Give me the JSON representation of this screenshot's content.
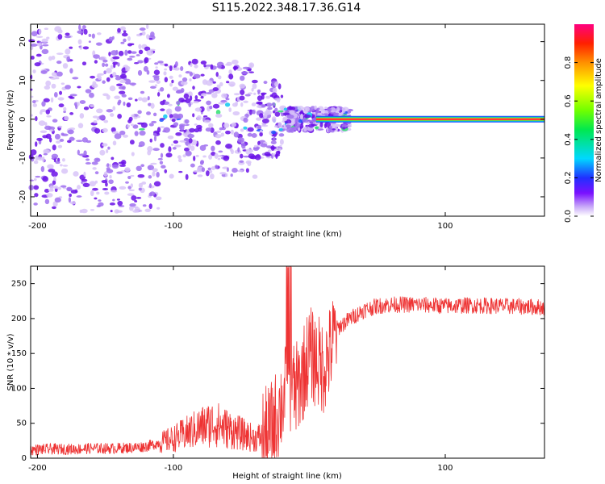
{
  "figure_title": "S115.2022.348.17.36.G14",
  "colors": {
    "snr_line": "#ee3333",
    "axis": "#000000",
    "scatter_light": "#d8c4f8",
    "scatter_mid": "#a070f0",
    "scatter_dark": "#6a10e8"
  },
  "chart_data": [
    {
      "type": "heatmap",
      "title": "",
      "xlabel": "Height of straight line (km)",
      "ylabel": "Frequency (Hz)",
      "xlim": [
        -205,
        173
      ],
      "ylim": [
        -25,
        24.5
      ],
      "xticks": [
        -200,
        -100,
        100
      ],
      "yticks": [
        -20,
        -10,
        0,
        10,
        20
      ],
      "signal_band": {
        "x_start": 5,
        "x_end": 173,
        "freq": 0.0
      },
      "colorbar": {
        "label": "Normalized spectral amplitude",
        "ticks": [
          0.0,
          0.2,
          0.4,
          0.6,
          0.8
        ],
        "range": [
          0,
          1
        ]
      }
    },
    {
      "type": "line",
      "title": "",
      "xlabel": "Height of straight line (km)",
      "ylabel": "SNR (10 * v/v)",
      "xlim": [
        -205,
        173
      ],
      "ylim": [
        0,
        275
      ],
      "xticks": [
        -200,
        -100,
        100
      ],
      "yticks": [
        0,
        50,
        100,
        150,
        200,
        250
      ],
      "series": [
        {
          "name": "SNR",
          "x": [
            -205,
            -190,
            -175,
            -160,
            -145,
            -130,
            -120,
            -110,
            -100,
            -90,
            -80,
            -70,
            -60,
            -50,
            -40,
            -30,
            -25,
            -20,
            -15,
            -10,
            -5,
            0,
            5,
            10,
            15,
            20,
            30,
            40,
            50,
            60,
            80,
            100,
            120,
            140,
            160,
            173
          ],
          "y": [
            12,
            13,
            13,
            14,
            14,
            15,
            17,
            22,
            28,
            36,
            44,
            50,
            42,
            35,
            28,
            35,
            55,
            80,
            110,
            95,
            120,
            150,
            140,
            130,
            150,
            185,
            200,
            212,
            218,
            220,
            220,
            218,
            219,
            218,
            217,
            216
          ]
        }
      ]
    }
  ]
}
